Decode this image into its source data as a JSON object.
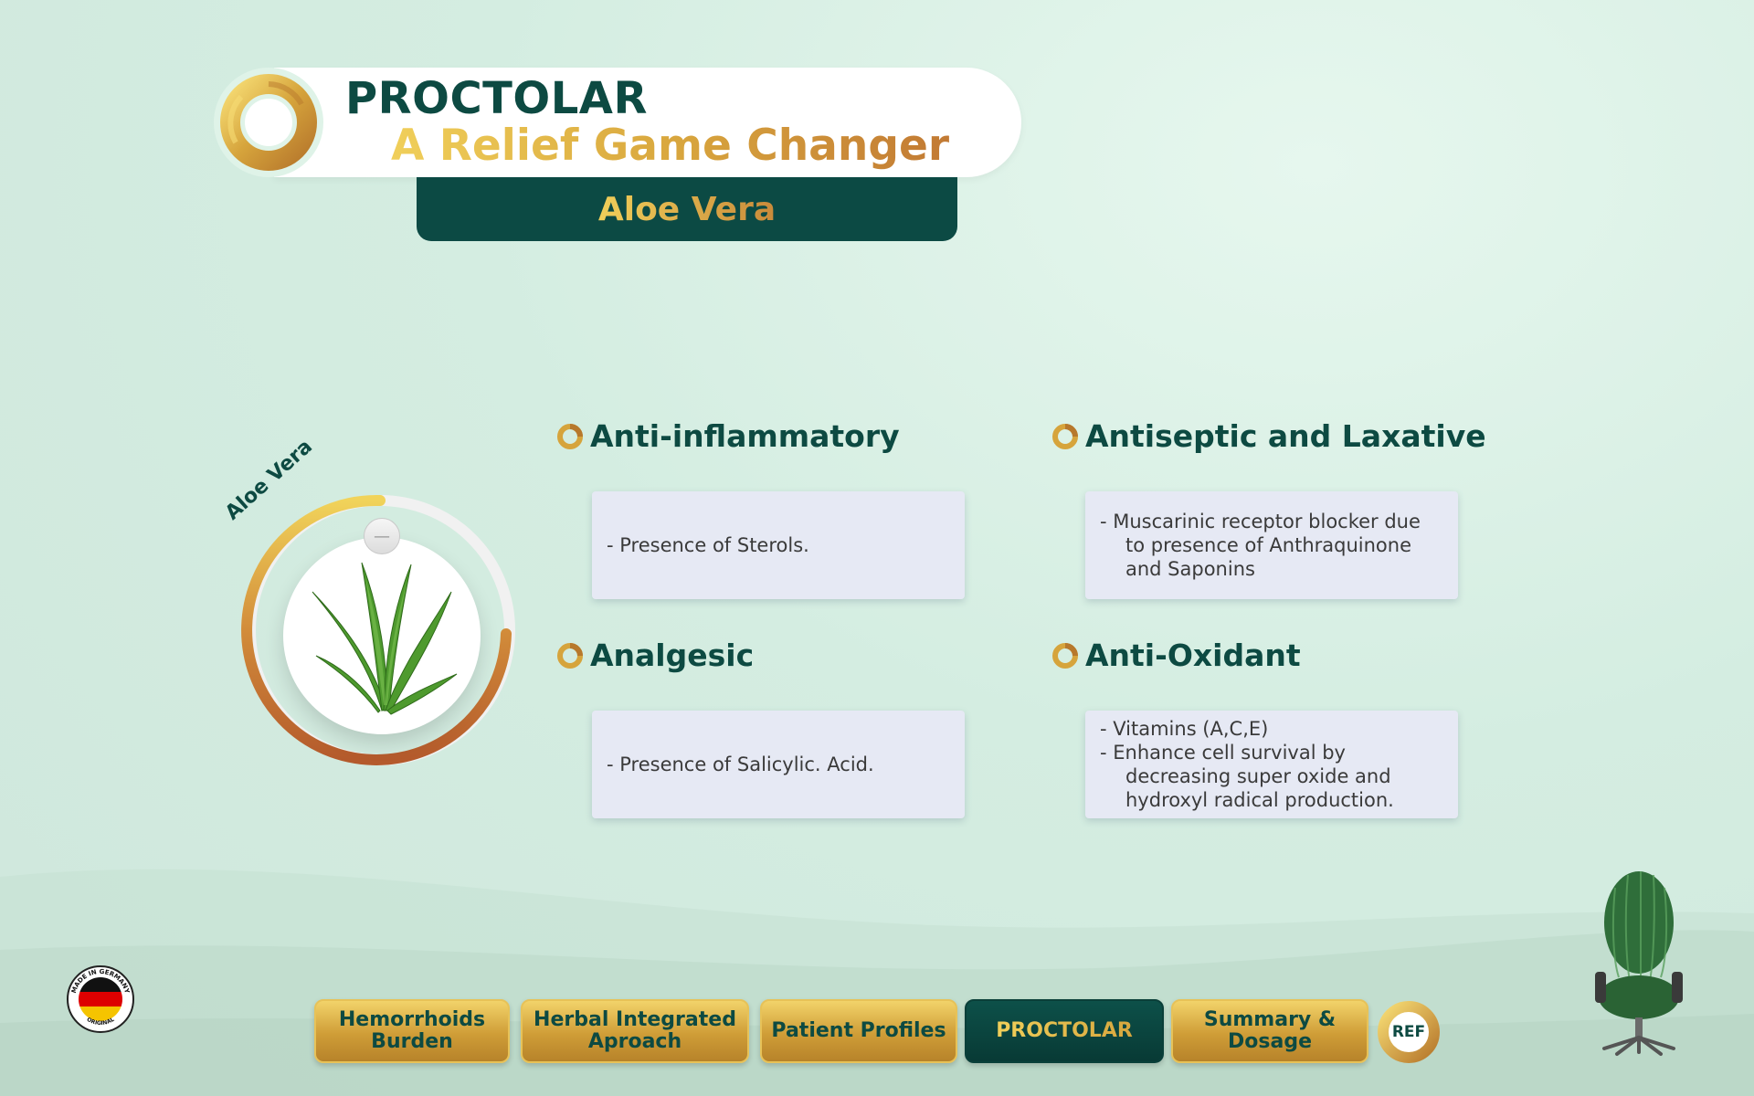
{
  "header": {
    "brand": "PROCTOLAR",
    "tagline": "A Relief Game Changer",
    "subtitle": "Aloe Vera"
  },
  "hero": {
    "ring_label": "Aloe Vera",
    "image_alt": "aloe-vera-plant"
  },
  "features": [
    {
      "title": "Anti-inflammatory",
      "lines": [
        "- Presence of Sterols."
      ]
    },
    {
      "title": "Antiseptic and Laxative",
      "lines": [
        "- Muscarinic receptor blocker due",
        "to presence of Anthraquinone",
        "and Saponins"
      ]
    },
    {
      "title": "Analgesic",
      "lines": [
        "- Presence of Salicylic. Acid."
      ]
    },
    {
      "title": "Anti-Oxidant",
      "lines": [
        "- Vitamins (A,C,E)",
        "- Enhance cell survival by",
        "decreasing super oxide and",
        "hydroxyl radical production."
      ]
    }
  ],
  "nav": {
    "items": [
      {
        "line1": "Hemorrhoids",
        "line2": "Burden"
      },
      {
        "line1": "Herbal Integrated",
        "line2": "Aproach"
      },
      {
        "line1": "Patient Profiles",
        "line2": ""
      },
      {
        "line1": "PROCTOLAR",
        "line2": ""
      },
      {
        "line1": "Summary &",
        "line2": "Dosage"
      }
    ],
    "ref_label": "REF"
  },
  "badge": {
    "text_top": "MADE IN GERMANY",
    "text_bottom": "ORIGINAL"
  },
  "colors": {
    "primary": "#0d4a42",
    "gold": "#d9a73e",
    "card": "#e6e9f4"
  }
}
